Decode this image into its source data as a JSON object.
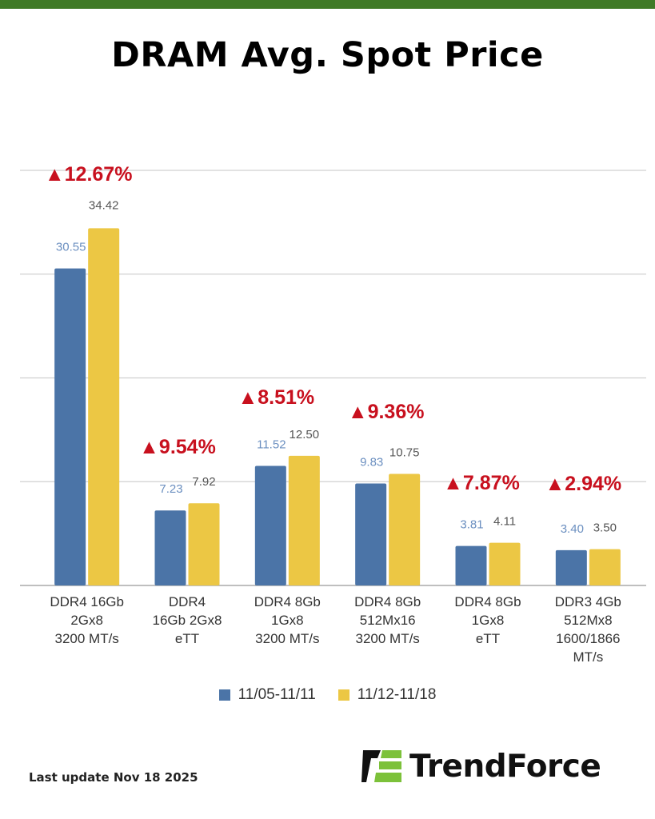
{
  "title": "DRAM Avg. Spot Price",
  "footer": "Last update Nov 18  2025",
  "logo_text": "TrendForce",
  "colors": {
    "series1": "#4b74a7",
    "series2": "#ecc744",
    "change": "#c8101e",
    "accent": "#3f7a26"
  },
  "chart_data": {
    "type": "bar",
    "title": "DRAM Avg. Spot Price",
    "categories": [
      [
        "DDR4 16Gb",
        "2Gx8",
        "3200 MT/s"
      ],
      [
        "DDR4",
        "16Gb 2Gx8",
        "eTT"
      ],
      [
        "DDR4 8Gb",
        "1Gx8",
        "3200 MT/s"
      ],
      [
        "DDR4 8Gb",
        "512Mx16",
        "3200 MT/s"
      ],
      [
        "DDR4 8Gb",
        "1Gx8",
        "eTT"
      ],
      [
        "DDR3 4Gb",
        "512Mx8",
        "1600/1866",
        "MT/s"
      ]
    ],
    "series": [
      {
        "name": "11/05-11/11",
        "values": [
          30.55,
          7.23,
          11.52,
          9.83,
          3.81,
          3.4
        ],
        "labels": [
          "30.55",
          "7.23",
          "11.52",
          "9.83",
          "3.81",
          "3.40"
        ]
      },
      {
        "name": "11/12-11/18",
        "values": [
          34.42,
          7.92,
          12.5,
          10.75,
          4.11,
          3.5
        ],
        "labels": [
          "34.42",
          "7.92",
          "12.50",
          "10.75",
          "4.11",
          "3.50"
        ]
      }
    ],
    "changes": [
      "▲12.67%",
      "▲9.54%",
      "▲8.51%",
      "▲9.36%",
      "▲7.87%",
      "▲2.94%"
    ],
    "ylim": [
      0,
      40
    ],
    "grid": true,
    "legend": "bottom"
  }
}
